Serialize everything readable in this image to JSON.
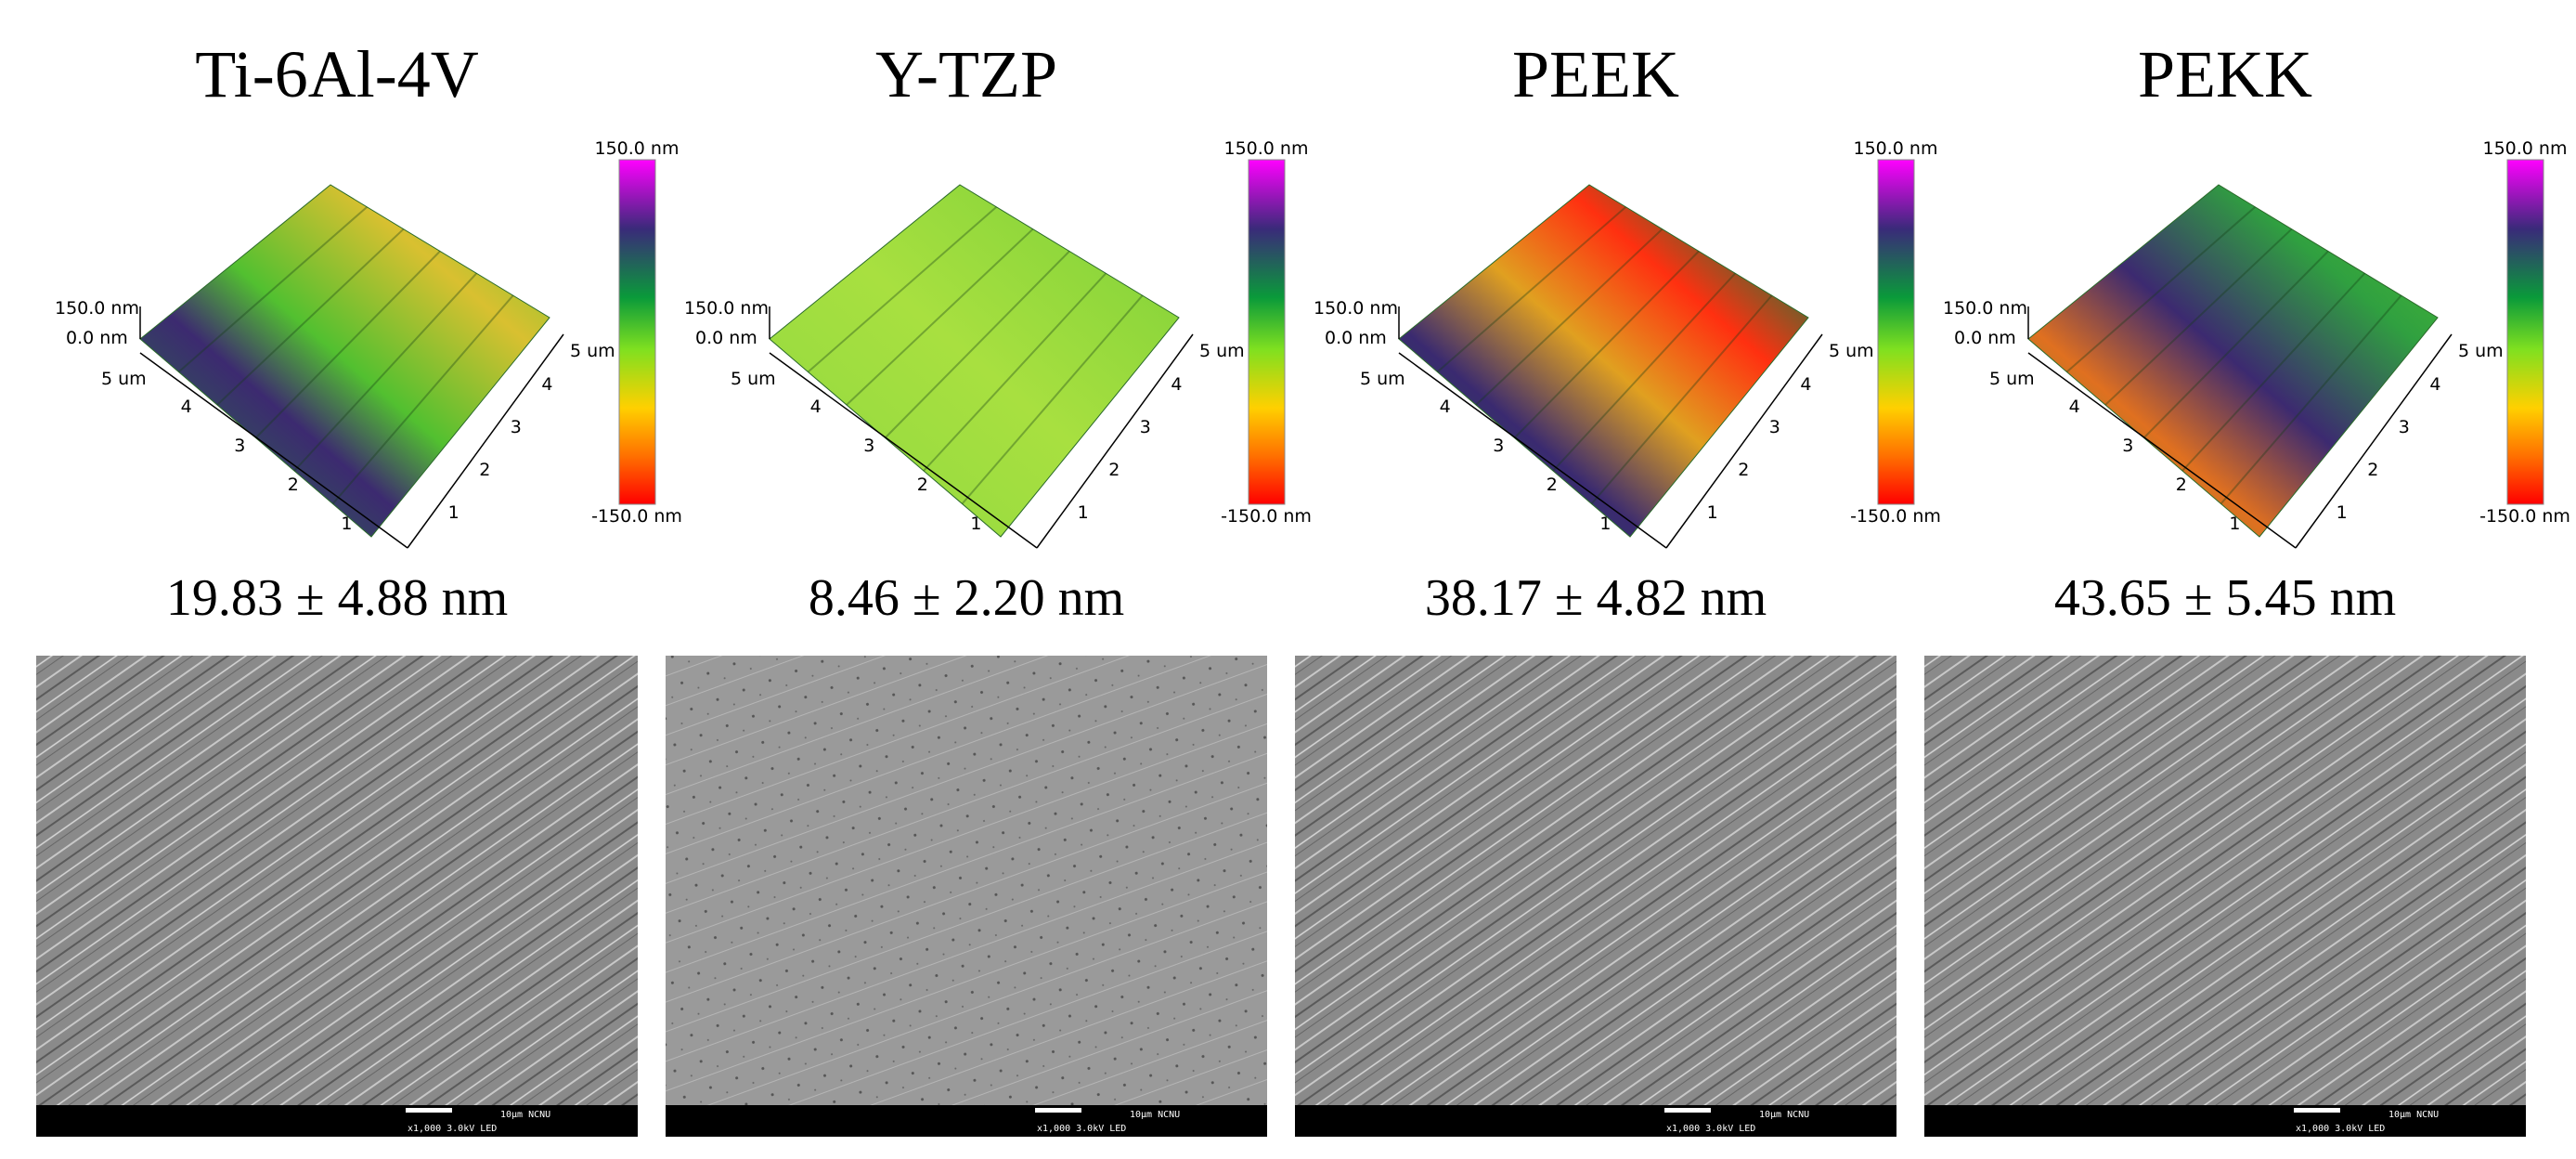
{
  "panels": [
    {
      "title": "Ti-6Al-4V",
      "roughness": "19.83 ± 4.88 nm"
    },
    {
      "title": "Y-TZP",
      "roughness": "8.46 ± 2.20 nm"
    },
    {
      "title": "PEEK",
      "roughness": "38.17 ± 4.82 nm"
    },
    {
      "title": "PEKK",
      "roughness": "43.65 ± 5.45 nm"
    }
  ],
  "colorbar": {
    "max_label": "150.0 nm",
    "min_label": "-150.0 nm"
  },
  "afm_axes": {
    "z_top": "150.0 nm",
    "z_zero": "0.0 nm",
    "x_end": "5 um",
    "y_end": "5 um",
    "left_ticks": [
      "4",
      "3",
      "2",
      "1"
    ],
    "right_ticks": [
      "1",
      "2",
      "3",
      "4"
    ]
  },
  "sem_bar": {
    "line1": "10µm NCNU",
    "line2": "x1,000 3.0kV LED"
  }
}
